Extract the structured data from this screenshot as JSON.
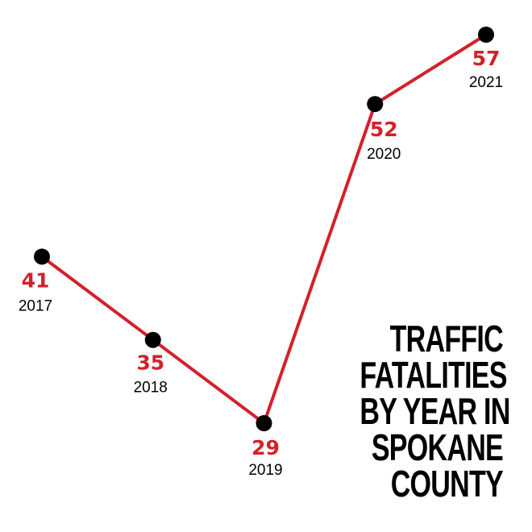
{
  "chart_data": {
    "type": "line",
    "x": [
      "2017",
      "2018",
      "2019",
      "2020",
      "2021"
    ],
    "values": [
      41,
      35,
      29,
      52,
      57
    ],
    "title_lines": [
      "TRAFFIC",
      "FATALITIES",
      "BY YEAR IN",
      "SPOKANE",
      "COUNTY"
    ],
    "ylim": [
      29,
      57
    ],
    "grid": false,
    "legend": "none",
    "colors": {
      "line": "#d4202a",
      "marker": "#000000",
      "value_label": "#d4202a",
      "year_label": "#000000",
      "title": "#000000"
    }
  }
}
